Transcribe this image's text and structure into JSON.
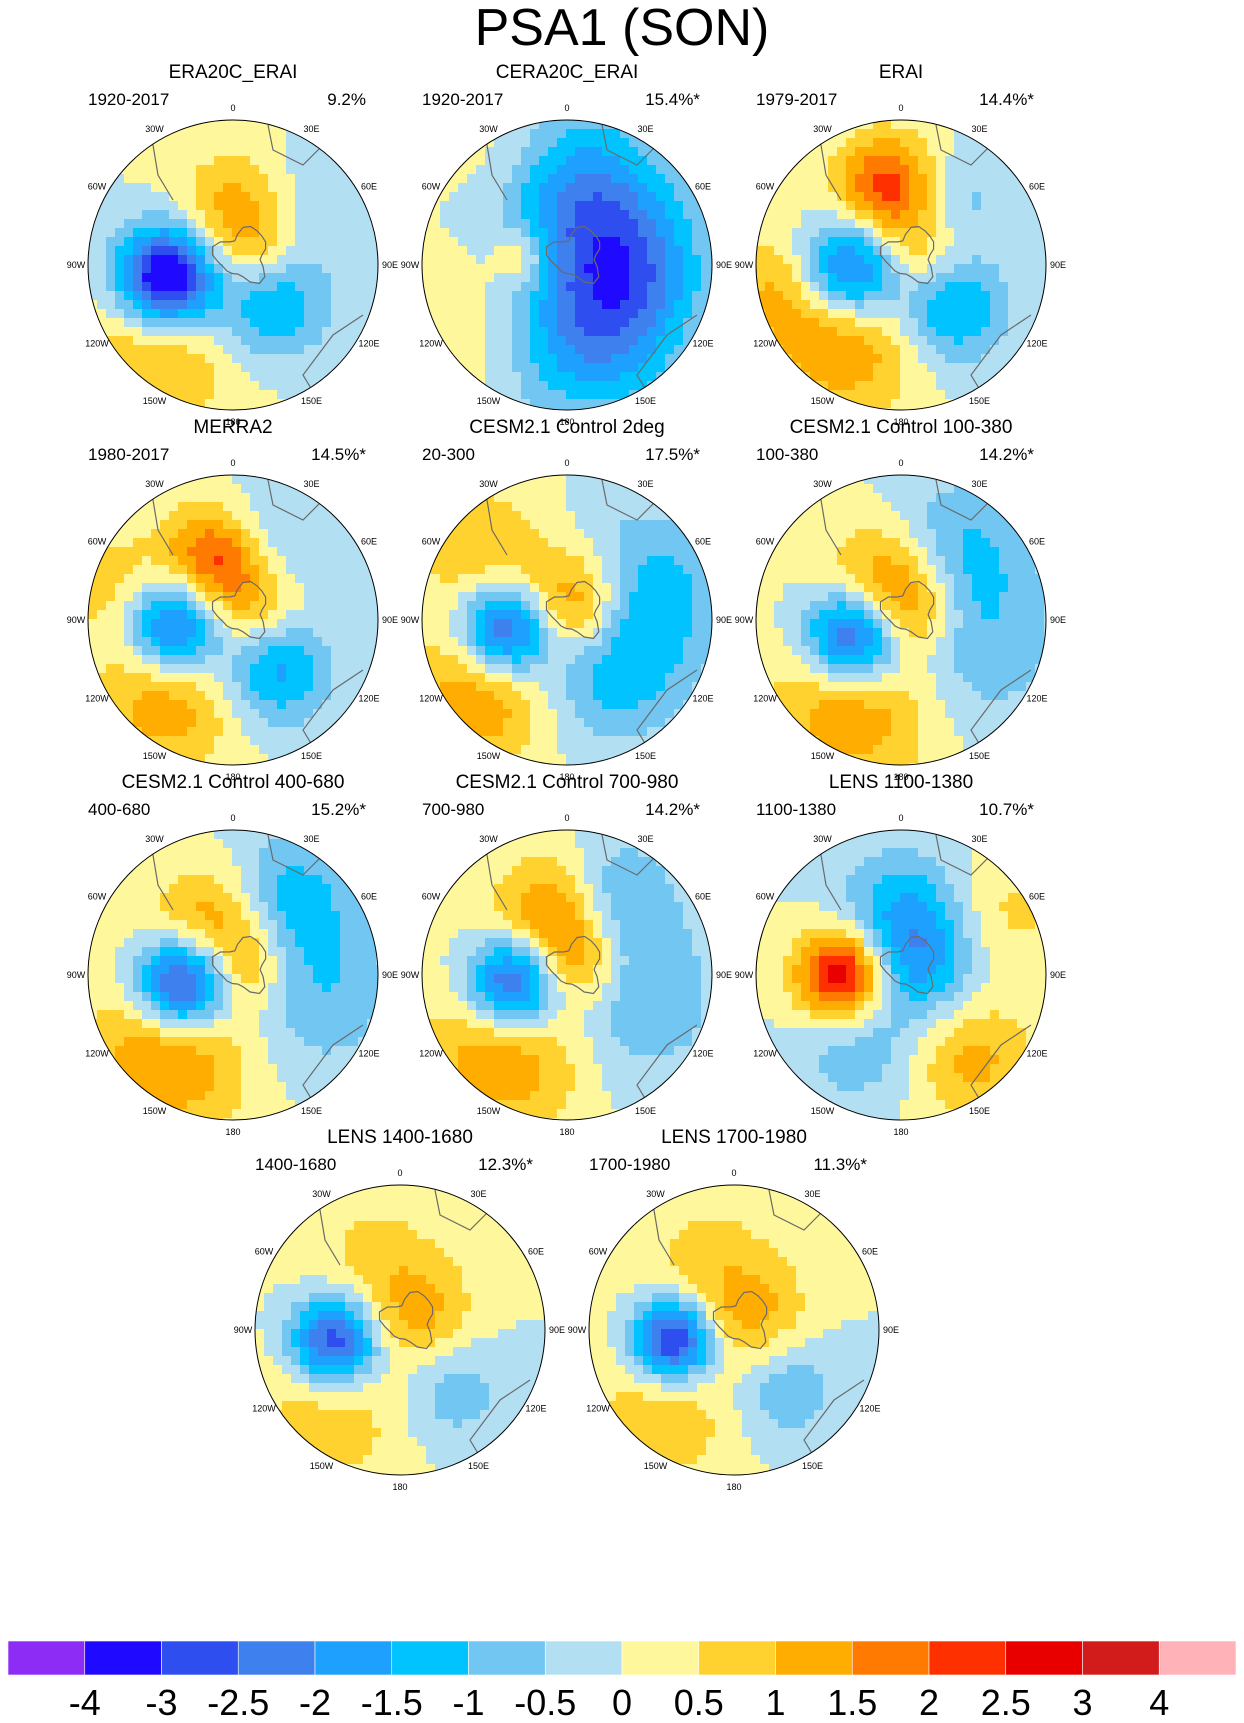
{
  "figure_title": "PSA1 (SON)",
  "lon_labels": [
    "0",
    "30E",
    "60E",
    "90E",
    "120E",
    "150E",
    "180",
    "150W",
    "120W",
    "90W",
    "60W",
    "30W"
  ],
  "colorbar": {
    "colors": [
      "#8d2cf5",
      "#1f0aff",
      "#2f4ef0",
      "#3d80ee",
      "#1ea0ff",
      "#00c3ff",
      "#72c7f2",
      "#b3dff3",
      "#fff79b",
      "#ffd230",
      "#ffad00",
      "#ff7a00",
      "#ff3000",
      "#e80000",
      "#d21c1c",
      "#ffb3b8"
    ],
    "tick_labels": [
      "-4",
      "-3",
      "-2.5",
      "-2",
      "-1.5",
      "-1",
      "-0.5",
      "0",
      "0.5",
      "1",
      "1.5",
      "2",
      "2.5",
      "3",
      "4"
    ]
  },
  "chart_data": {
    "type": "polar-contour-map",
    "title": "PSA1 (SON)",
    "levels": [
      -4,
      -3,
      -2.5,
      -2,
      -1.5,
      -1,
      -0.5,
      0,
      0.5,
      1,
      1.5,
      2,
      2.5,
      3,
      4
    ],
    "panels": [
      {
        "title": "ERA20C_ERAI",
        "period": "1920-2017",
        "variance": "9.2%",
        "centers": [
          {
            "lon": -100,
            "colat": 0.46,
            "amp": -4.2,
            "r": 0.24
          },
          {
            "lon": 10,
            "colat": 0.4,
            "amp": 1.3,
            "r": 0.3
          },
          {
            "lon": 135,
            "colat": 0.35,
            "amp": -1.8,
            "r": 0.28
          },
          {
            "lon": -140,
            "colat": 0.78,
            "amp": 1.1,
            "r": 0.4
          },
          {
            "lon": 60,
            "colat": 0.15,
            "amp": 1.0,
            "r": 0.25
          },
          {
            "lon": 45,
            "colat": 0.62,
            "amp": -0.7,
            "r": 0.3
          }
        ]
      },
      {
        "title": "CERA20C_ERAI",
        "period": "1920-2017",
        "variance": "15.4%*",
        "centers": [
          {
            "lon": 10,
            "colat": 0.5,
            "amp": -2.0,
            "r": 0.4
          },
          {
            "lon": 160,
            "colat": 0.5,
            "amp": -2.0,
            "r": 0.4
          },
          {
            "lon": 90,
            "colat": 0.45,
            "amp": -1.6,
            "r": 0.35
          },
          {
            "lon": -80,
            "colat": 0.3,
            "amp": 1.1,
            "r": 0.15
          },
          {
            "lon": -120,
            "colat": 0.8,
            "amp": 0.5,
            "r": 0.35
          },
          {
            "lon": -30,
            "colat": 0.85,
            "amp": 0.5,
            "r": 0.3
          }
        ]
      },
      {
        "title": "ERAI",
        "period": "1979-2017",
        "variance": "14.4%*",
        "centers": [
          {
            "lon": -95,
            "colat": 0.35,
            "amp": -3.0,
            "r": 0.25
          },
          {
            "lon": -10,
            "colat": 0.55,
            "amp": 2.3,
            "r": 0.25
          },
          {
            "lon": 130,
            "colat": 0.45,
            "amp": -1.8,
            "r": 0.26
          },
          {
            "lon": -145,
            "colat": 0.65,
            "amp": 1.5,
            "r": 0.35
          },
          {
            "lon": 55,
            "colat": 0.15,
            "amp": 1.2,
            "r": 0.25
          },
          {
            "lon": 40,
            "colat": 0.55,
            "amp": -0.9,
            "r": 0.25
          },
          {
            "lon": -100,
            "colat": 0.85,
            "amp": 1.0,
            "r": 0.3
          }
        ]
      },
      {
        "title": "MERRA2",
        "period": "1980-2017",
        "variance": "14.5%*",
        "centers": [
          {
            "lon": -95,
            "colat": 0.4,
            "amp": -3.0,
            "r": 0.24
          },
          {
            "lon": -15,
            "colat": 0.45,
            "amp": 2.2,
            "r": 0.25
          },
          {
            "lon": 140,
            "colat": 0.45,
            "amp": -1.8,
            "r": 0.26
          },
          {
            "lon": -140,
            "colat": 0.7,
            "amp": 1.4,
            "r": 0.35
          },
          {
            "lon": 50,
            "colat": 0.15,
            "amp": 1.2,
            "r": 0.25
          },
          {
            "lon": 25,
            "colat": 0.6,
            "amp": -0.9,
            "r": 0.28
          },
          {
            "lon": -75,
            "colat": 0.85,
            "amp": 0.8,
            "r": 0.3
          }
        ]
      },
      {
        "title": "CESM2.1 Control 2deg",
        "period": "20-300",
        "variance": "17.5%*",
        "centers": [
          {
            "lon": -100,
            "colat": 0.42,
            "amp": -3.2,
            "r": 0.23
          },
          {
            "lon": 30,
            "colat": 0.12,
            "amp": 2.3,
            "r": 0.27
          },
          {
            "lon": 70,
            "colat": 0.55,
            "amp": -1.4,
            "r": 0.38
          },
          {
            "lon": 140,
            "colat": 0.45,
            "amp": -1.3,
            "r": 0.35
          },
          {
            "lon": -130,
            "colat": 0.75,
            "amp": 1.6,
            "r": 0.35
          },
          {
            "lon": -50,
            "colat": 0.8,
            "amp": 1.0,
            "r": 0.3
          }
        ]
      },
      {
        "title": "CESM2.1 Control 100-380",
        "period": "100-380",
        "variance": "14.2%*",
        "centers": [
          {
            "lon": -110,
            "colat": 0.35,
            "amp": -3.4,
            "r": 0.24
          },
          {
            "lon": -20,
            "colat": 0.3,
            "amp": 1.6,
            "r": 0.28
          },
          {
            "lon": 40,
            "colat": 0.62,
            "amp": -1.1,
            "r": 0.35
          },
          {
            "lon": 110,
            "colat": 0.55,
            "amp": -0.9,
            "r": 0.4
          },
          {
            "lon": -150,
            "colat": 0.65,
            "amp": 1.6,
            "r": 0.4
          },
          {
            "lon": 60,
            "colat": 0.1,
            "amp": 1.2,
            "r": 0.22
          }
        ]
      },
      {
        "title": "CESM2.1 Control 400-680",
        "period": "400-680",
        "variance": "15.2%*",
        "centers": [
          {
            "lon": -100,
            "colat": 0.35,
            "amp": -3.8,
            "r": 0.23
          },
          {
            "lon": -20,
            "colat": 0.4,
            "amp": 1.5,
            "r": 0.28
          },
          {
            "lon": 35,
            "colat": 0.65,
            "amp": -1.2,
            "r": 0.32
          },
          {
            "lon": 100,
            "colat": 0.55,
            "amp": -1.0,
            "r": 0.4
          },
          {
            "lon": -140,
            "colat": 0.65,
            "amp": 1.7,
            "r": 0.4
          },
          {
            "lon": 60,
            "colat": 0.12,
            "amp": 1.2,
            "r": 0.22
          }
        ]
      },
      {
        "title": "CESM2.1 Control 700-980",
        "period": "700-980",
        "variance": "14.2%*",
        "centers": [
          {
            "lon": -100,
            "colat": 0.38,
            "amp": -3.3,
            "r": 0.23
          },
          {
            "lon": -10,
            "colat": 0.45,
            "amp": 1.8,
            "r": 0.28
          },
          {
            "lon": 30,
            "colat": 0.6,
            "amp": -1.2,
            "r": 0.3
          },
          {
            "lon": 110,
            "colat": 0.5,
            "amp": -1.0,
            "r": 0.4
          },
          {
            "lon": -140,
            "colat": 0.65,
            "amp": 1.6,
            "r": 0.4
          },
          {
            "lon": 40,
            "colat": 0.12,
            "amp": 1.3,
            "r": 0.22
          }
        ]
      },
      {
        "title": "LENS 1100-1380",
        "period": "1100-1380",
        "variance": "10.7%*",
        "centers": [
          {
            "lon": -90,
            "colat": 0.4,
            "amp": 3.3,
            "r": 0.22
          },
          {
            "lon": 45,
            "colat": 0.15,
            "amp": -1.8,
            "r": 0.3
          },
          {
            "lon": 0,
            "colat": 0.5,
            "amp": -1.0,
            "r": 0.3
          },
          {
            "lon": 140,
            "colat": 0.75,
            "amp": 1.2,
            "r": 0.3
          },
          {
            "lon": 60,
            "colat": 0.8,
            "amp": 0.7,
            "r": 0.3
          },
          {
            "lon": -150,
            "colat": 0.6,
            "amp": -0.8,
            "r": 0.3
          }
        ]
      },
      {
        "title": "LENS 1400-1680",
        "period": "1400-1680",
        "variance": "12.3%*",
        "centers": [
          {
            "lon": -100,
            "colat": 0.45,
            "amp": -3.3,
            "r": 0.22
          },
          {
            "lon": 60,
            "colat": 0.15,
            "amp": 1.2,
            "r": 0.28
          },
          {
            "lon": 140,
            "colat": 0.5,
            "amp": -1.0,
            "r": 0.28
          },
          {
            "lon": -140,
            "colat": 0.7,
            "amp": 0.9,
            "r": 0.4
          },
          {
            "lon": -20,
            "colat": 0.55,
            "amp": 0.6,
            "r": 0.35
          }
        ]
      },
      {
        "title": "LENS 1700-1980",
        "period": "1700-1980",
        "variance": "11.3%*",
        "centers": [
          {
            "lon": -100,
            "colat": 0.42,
            "amp": -3.6,
            "r": 0.2
          },
          {
            "lon": 60,
            "colat": 0.15,
            "amp": 1.2,
            "r": 0.28
          },
          {
            "lon": 140,
            "colat": 0.5,
            "amp": -1.1,
            "r": 0.28
          },
          {
            "lon": -140,
            "colat": 0.7,
            "amp": 0.9,
            "r": 0.4
          },
          {
            "lon": -20,
            "colat": 0.55,
            "amp": 0.6,
            "r": 0.35
          }
        ]
      }
    ]
  }
}
